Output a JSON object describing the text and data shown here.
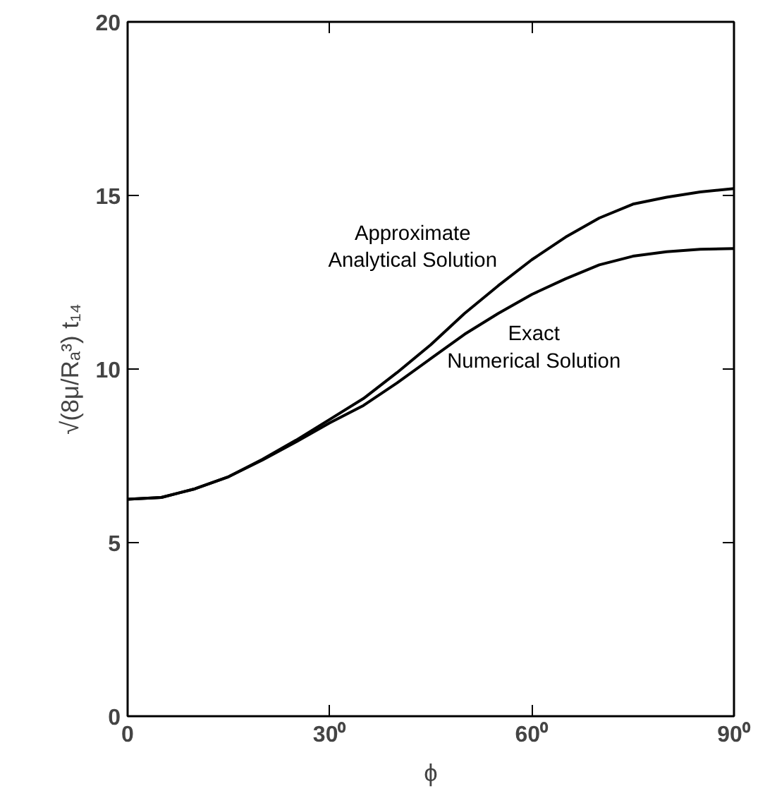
{
  "chart_data": {
    "type": "line",
    "xlabel": "ϕ",
    "ylabel": "√(8μ/Rₐ³) t₁₄",
    "x": [
      0,
      5,
      10,
      15,
      20,
      25,
      30,
      35,
      40,
      45,
      50,
      55,
      60,
      65,
      70,
      75,
      80,
      85,
      90
    ],
    "series": [
      {
        "color": "#000000",
        "values": [
          6.25,
          6.3,
          6.55,
          6.9,
          7.4,
          7.95,
          8.55,
          9.15,
          9.9,
          10.7,
          11.6,
          12.4,
          13.15,
          13.8,
          14.35,
          14.75,
          14.95,
          15.1,
          15.2
        ]
      },
      {
        "color": "#000000",
        "values": [
          6.25,
          6.3,
          6.55,
          6.9,
          7.38,
          7.9,
          8.45,
          8.95,
          9.6,
          10.3,
          11.0,
          11.6,
          12.15,
          12.6,
          13.0,
          13.25,
          13.38,
          13.45,
          13.47
        ]
      }
    ],
    "annotations": [
      "Approximate\nAnalytical Solution",
      "Exact\nNumerical Solution"
    ],
    "xlim": [
      0,
      90
    ],
    "ylim": [
      0,
      20
    ],
    "xticks": [
      0,
      {
        "value": 30,
        "label": "30⁰"
      },
      {
        "value": 60,
        "label": "60⁰"
      },
      {
        "value": 90,
        "label": "90⁰"
      }
    ],
    "yticks": [
      0,
      5,
      10,
      15,
      20
    ],
    "grid": false,
    "line_style": "solid"
  }
}
